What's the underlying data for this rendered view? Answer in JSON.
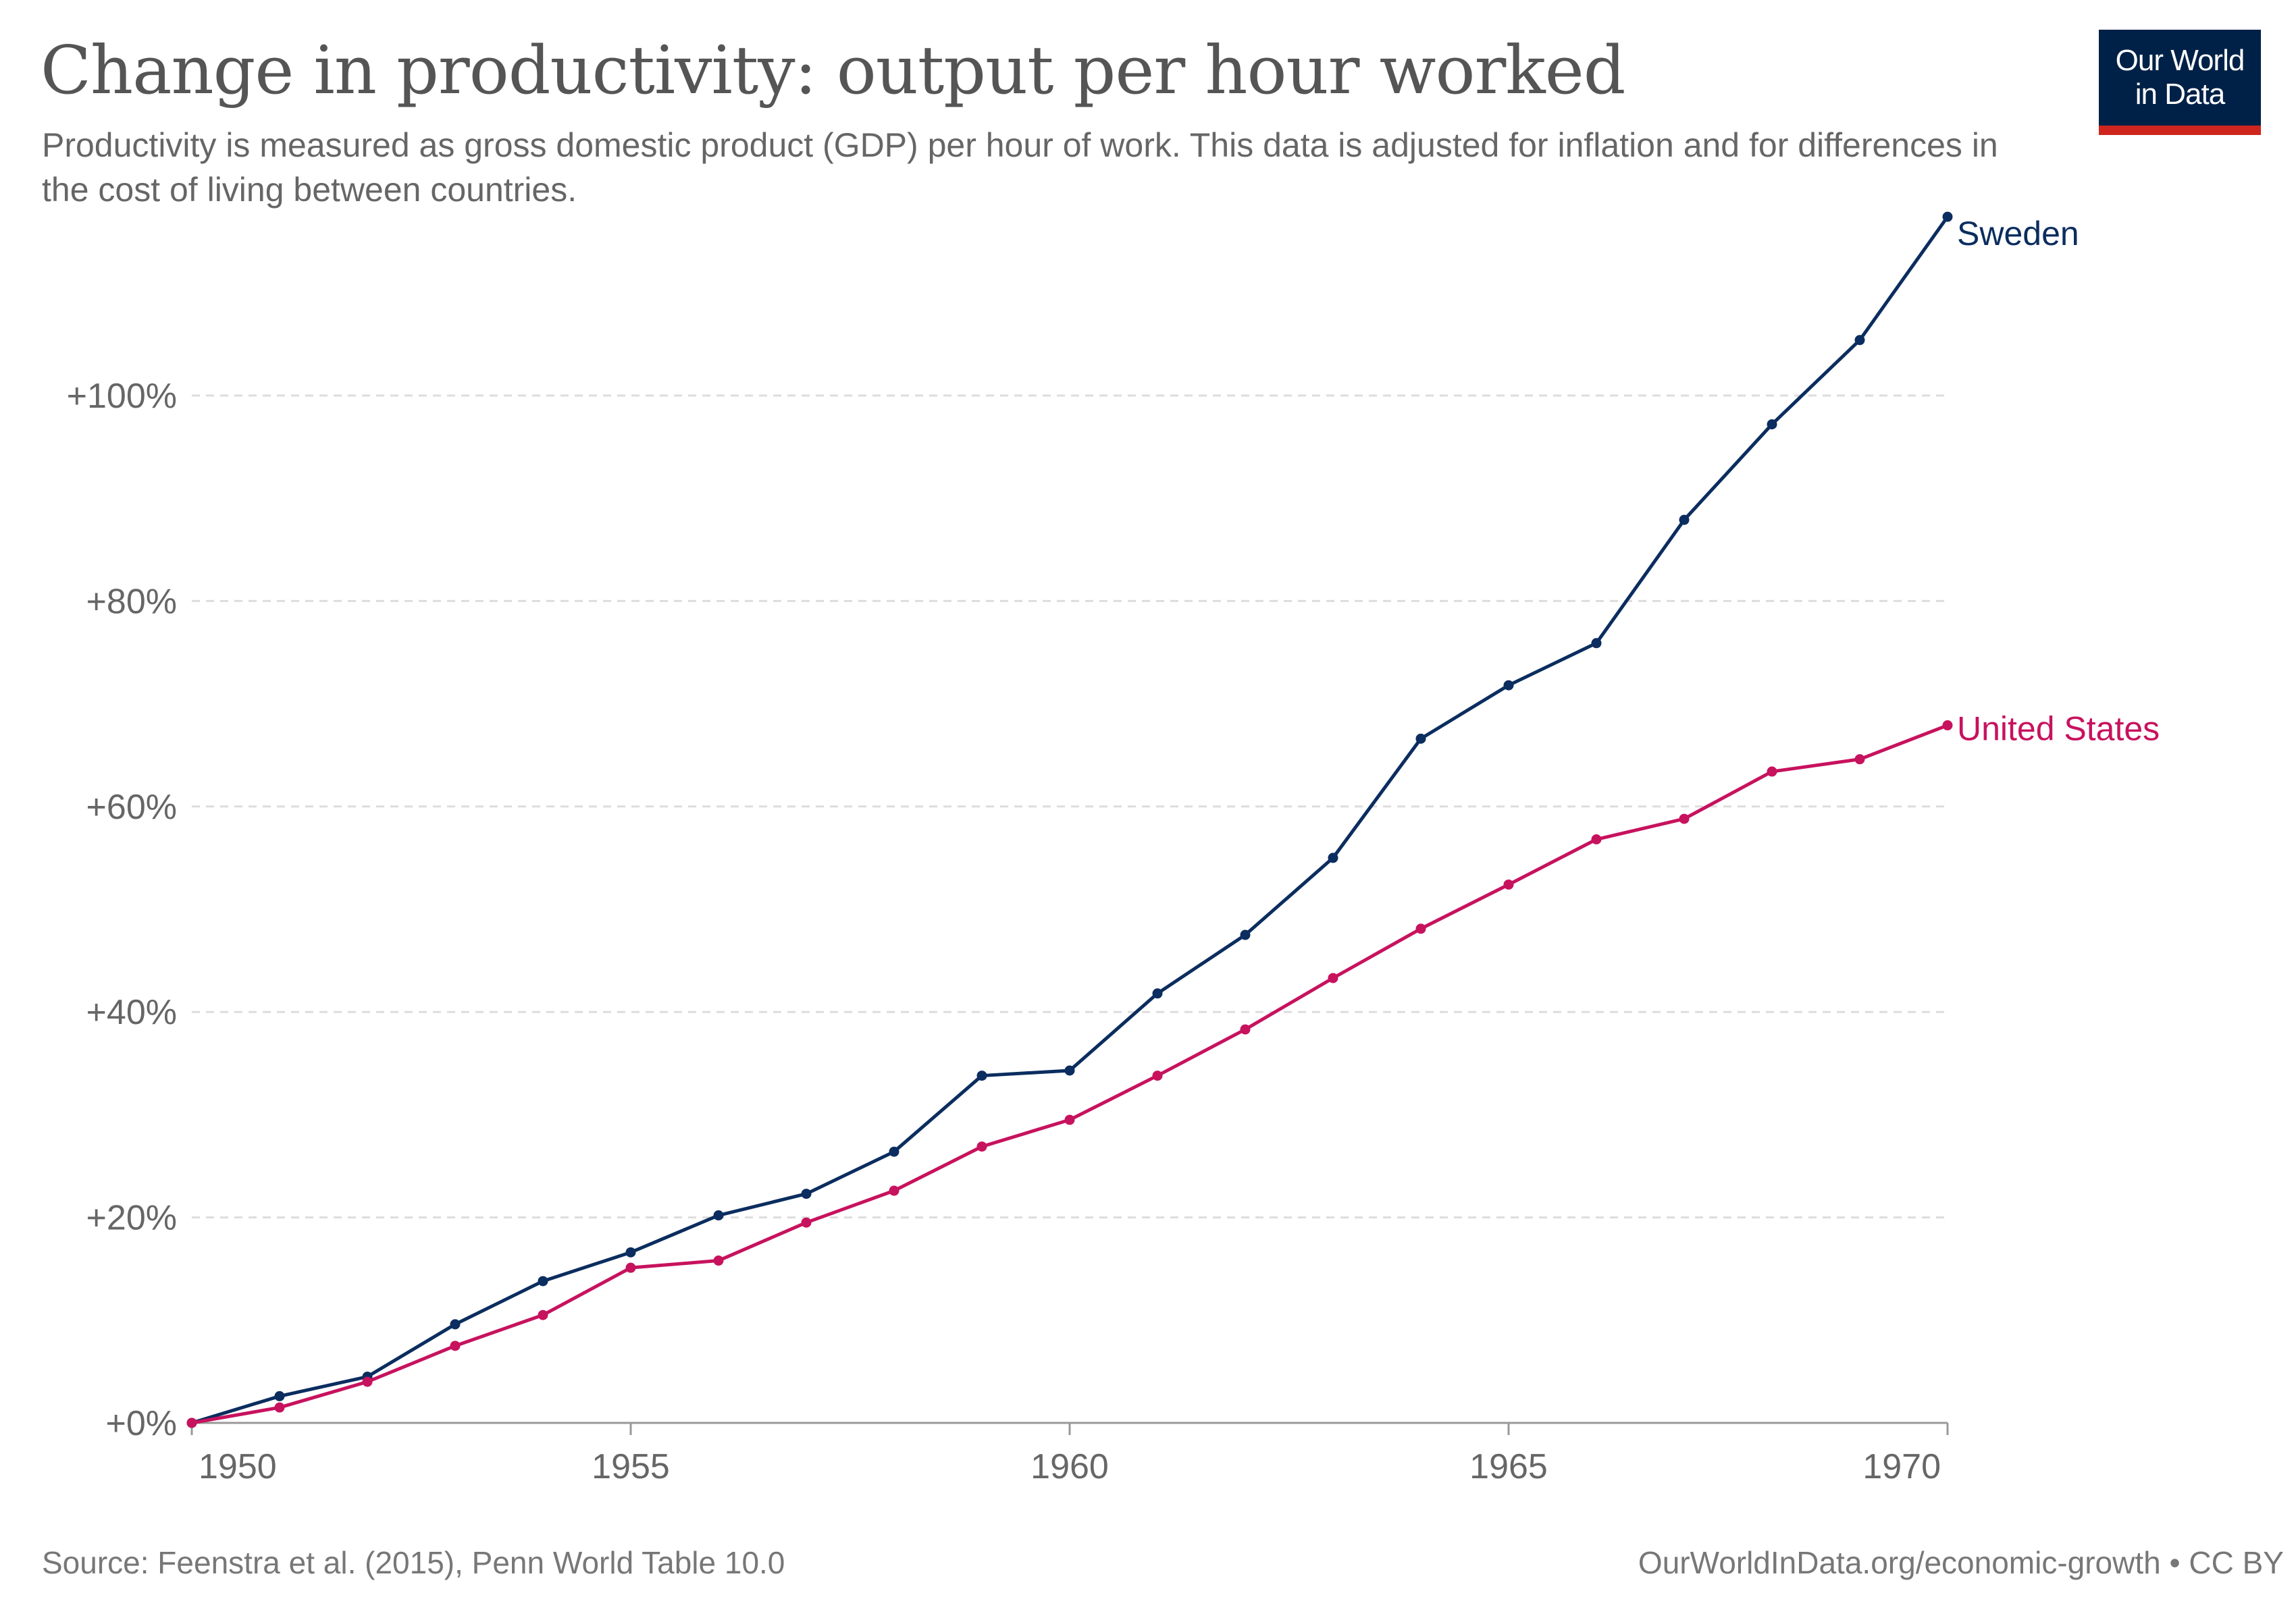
{
  "title": "Change in productivity: output per hour worked",
  "subtitle": "Productivity is measured as gross domestic product (GDP) per hour of work. This data is adjusted for inflation and for differences in the cost of living between countries.",
  "logo": {
    "line1": "Our World",
    "line2": "in Data"
  },
  "footer": {
    "source": "Source: Feenstra et al. (2015), Penn World Table 10.0",
    "link": "OurWorldInData.org/economic-growth",
    "separator": "•",
    "license": "CC BY"
  },
  "colors": {
    "Sweden": "#0b2d5f",
    "United States": "#c7125e",
    "axis": "#999999",
    "grid": "#dddddd",
    "tick_text": "#666666"
  },
  "chart_data": {
    "type": "line",
    "x": [
      1950,
      1951,
      1952,
      1953,
      1954,
      1955,
      1956,
      1957,
      1958,
      1959,
      1960,
      1961,
      1962,
      1963,
      1964,
      1965,
      1966,
      1967,
      1968,
      1969,
      1970
    ],
    "series": [
      {
        "name": "Sweden",
        "values": [
          0,
          2.6,
          4.5,
          9.6,
          13.8,
          16.6,
          20.2,
          22.3,
          26.4,
          33.8,
          34.3,
          41.8,
          47.5,
          55.0,
          66.6,
          71.8,
          75.9,
          87.9,
          97.2,
          105.4,
          117.4
        ]
      },
      {
        "name": "United States",
        "values": [
          0,
          1.5,
          4.0,
          7.5,
          10.5,
          15.1,
          15.8,
          19.5,
          22.6,
          26.9,
          29.5,
          33.8,
          38.3,
          43.3,
          48.1,
          52.4,
          56.8,
          58.8,
          63.4,
          64.6,
          67.9
        ]
      }
    ],
    "yticks": [
      0,
      20,
      40,
      60,
      80,
      100
    ],
    "ytick_labels": [
      "+0%",
      "+20%",
      "+40%",
      "+60%",
      "+80%",
      "+100%"
    ],
    "xticks": [
      1950,
      1955,
      1960,
      1965,
      1970
    ],
    "xtick_labels": [
      "1950",
      "1955",
      "1960",
      "1965",
      "1970"
    ],
    "xlim": [
      1950,
      1970
    ],
    "ylim": [
      0,
      120
    ],
    "grid": true,
    "legend": "inline labels at line ends"
  }
}
